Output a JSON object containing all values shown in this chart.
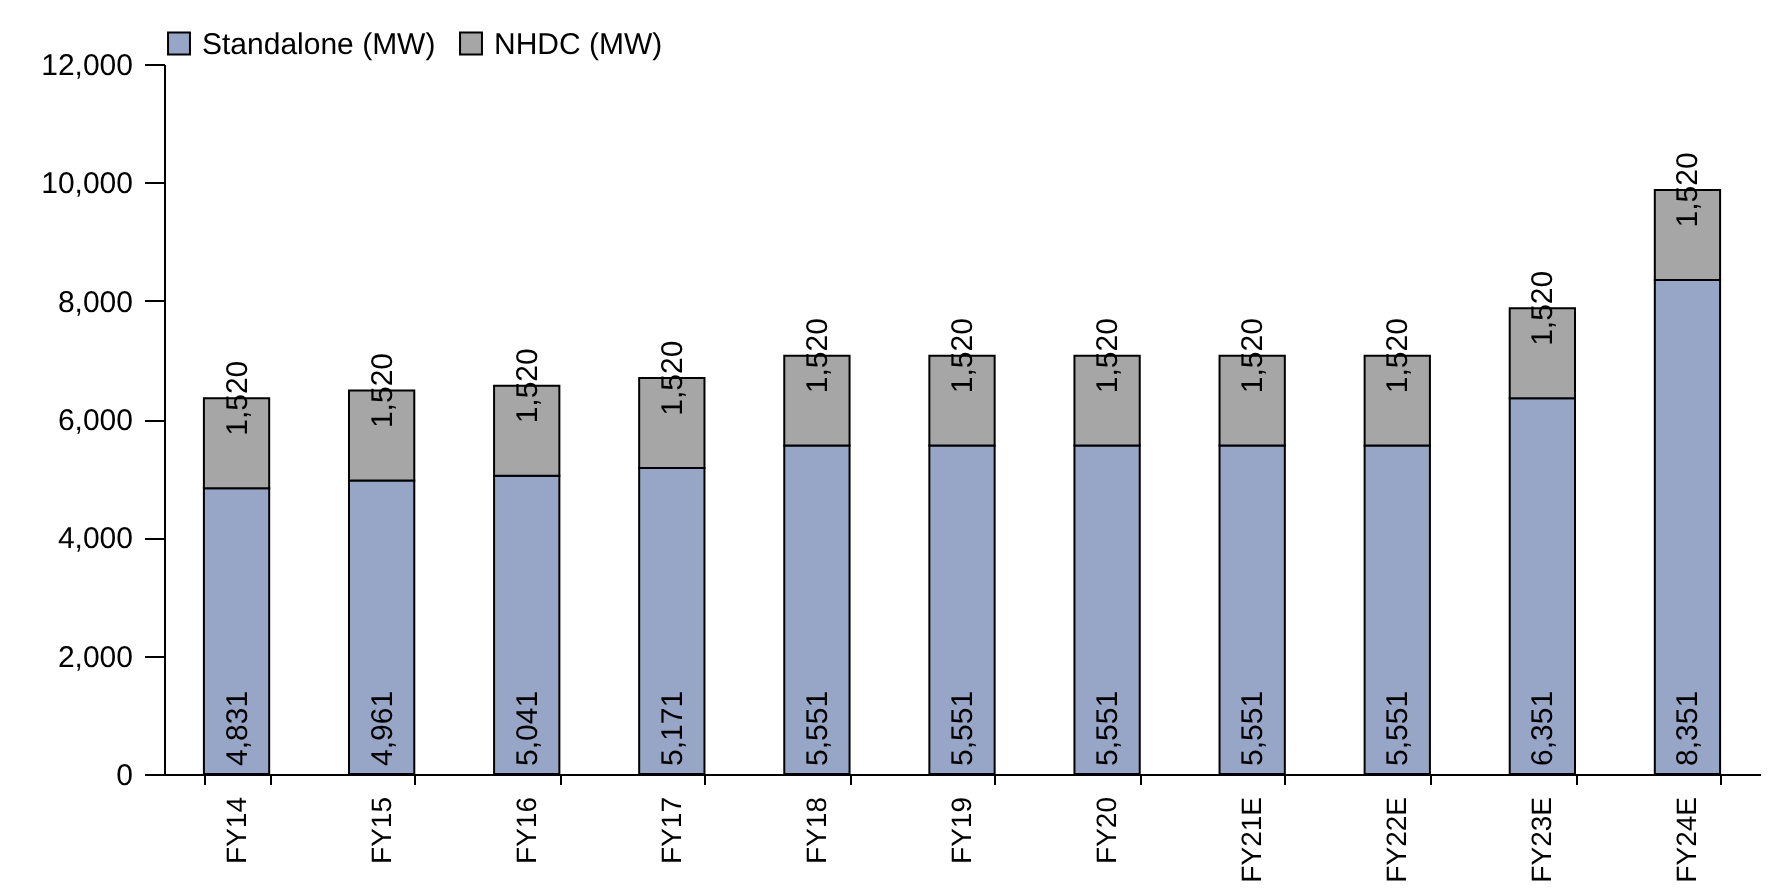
{
  "chart_data": {
    "type": "bar",
    "stacked": true,
    "categories": [
      "FY14",
      "FY15",
      "FY16",
      "FY17",
      "FY18",
      "FY19",
      "FY20",
      "FY21E",
      "FY22E",
      "FY23E",
      "FY24E"
    ],
    "series": [
      {
        "name": "Standalone (MW)",
        "color": "#97a6c6",
        "values": [
          4831,
          4961,
          5041,
          5171,
          5551,
          5551,
          5551,
          5551,
          5551,
          6351,
          8351
        ],
        "value_labels": [
          "4,831",
          "4,961",
          "5,041",
          "5,171",
          "5,551",
          "5,551",
          "5,551",
          "5,551",
          "5,551",
          "6,351",
          "8,351"
        ]
      },
      {
        "name": "NHDC (MW)",
        "color": "#a6a6a6",
        "values": [
          1520,
          1520,
          1520,
          1520,
          1520,
          1520,
          1520,
          1520,
          1520,
          1520,
          1520
        ],
        "value_labels": [
          "1,520",
          "1,520",
          "1,520",
          "1,520",
          "1,520",
          "1,520",
          "1,520",
          "1,520",
          "1,520",
          "1,520",
          "1,520"
        ]
      }
    ],
    "ylim": [
      0,
      12000
    ],
    "yticks": [
      0,
      {
        "value": 2000,
        "label": "2,000"
      },
      {
        "value": 4000,
        "label": "4,000"
      },
      {
        "value": 6000,
        "label": "6,000"
      },
      {
        "value": 8000,
        "label": "8,000"
      },
      {
        "value": 10000,
        "label": "10,000"
      },
      {
        "value": 12000,
        "label": "12,000"
      }
    ],
    "grid": false,
    "legend": "top"
  }
}
